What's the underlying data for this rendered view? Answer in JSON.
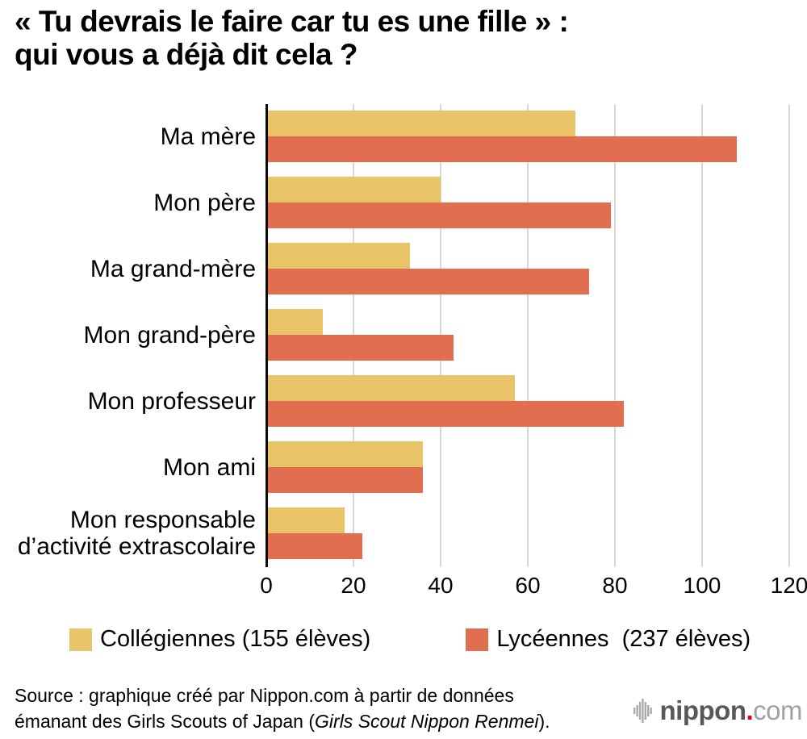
{
  "title": {
    "line1": "« Tu devrais le faire car tu es une fille » :",
    "line2": "qui vous a déjà dit cela ?"
  },
  "chart_data": {
    "type": "bar",
    "orientation": "horizontal",
    "title": "« Tu devrais le faire car tu es une fille » : qui vous a déjà dit cela ?",
    "categories": [
      "Ma mère",
      "Mon père",
      "Ma grand-mère",
      "Mon grand-père",
      "Mon professeur",
      "Mon ami",
      "Mon responsable d’activité extrascolaire"
    ],
    "series": [
      {
        "name": "Collégiennes (155 élèves)",
        "color": "#E8C368",
        "values": [
          71,
          40,
          33,
          13,
          57,
          36,
          18
        ]
      },
      {
        "name": "Lycéennes  (237 élèves)",
        "color": "#E26E50",
        "values": [
          108,
          79,
          74,
          43,
          82,
          36,
          22
        ]
      }
    ],
    "xlim": [
      0,
      120
    ],
    "xticks": [
      0,
      20,
      40,
      60,
      80,
      100,
      120
    ],
    "xlabel": "",
    "ylabel": "",
    "grid": "vertical-only",
    "legend_position": "bottom"
  },
  "legend": {
    "items": [
      {
        "label": "Collégiennes (155 élèves)",
        "color": "#E8C368"
      },
      {
        "label": "Lycéennes  (237 élèves)",
        "color": "#E26E50"
      }
    ]
  },
  "source": {
    "line1": "Source : graphique créé par Nippon.com à partir de données",
    "line2_pre": "émanant des Girls Scouts of Japan (",
    "line2_italic": "Girls Scout Nippon Renmei",
    "line2_post": ")."
  },
  "logo": {
    "name": "nippon",
    "dot": ".",
    "tld": "com",
    "icon": "equalizer-bars-icon",
    "colors": {
      "text": "#595757",
      "dot": "#E60012",
      "tld": "#A0A1A1",
      "icon": "#A9AAAA"
    }
  },
  "style": {
    "axis_color": "#0A0A0A",
    "gridline_color": "#D8D8D8",
    "background": "#FFFFFF"
  }
}
